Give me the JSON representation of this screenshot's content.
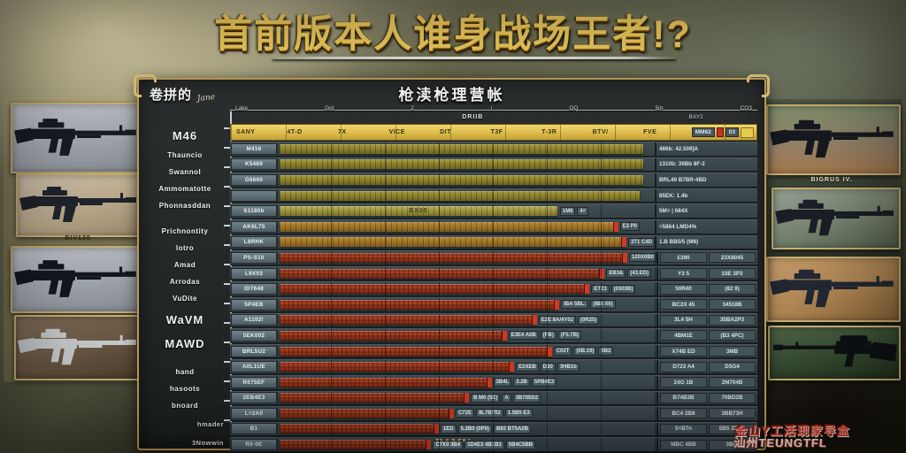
{
  "title": {
    "text": "首前版本人谁身战场王者!?"
  },
  "watermark": {
    "line1": "金山Y工活现家导盒",
    "line2": "汕州TEUNGTFL"
  },
  "panel": {
    "title": "枪渎枪理营帐",
    "corner_label": "卷拼的",
    "corner_note": "Jane",
    "footer": "DAMN"
  },
  "sidebar": {
    "items": [
      {
        "label": "M46",
        "size": "lg"
      },
      {
        "label": "Thauncio"
      },
      {
        "label": "Swannol"
      },
      {
        "label": "Ammomatotte"
      },
      {
        "label": "Phonnasddan"
      },
      {
        "label": "Prichnontity",
        "gap": true
      },
      {
        "label": "lotro"
      },
      {
        "label": "Amad"
      },
      {
        "label": "Arrodas"
      },
      {
        "label": "VuDite"
      },
      {
        "label": "WaVM",
        "size": "lg"
      },
      {
        "label": "MAWD",
        "size": "lg"
      },
      {
        "label": "hand",
        "gap": true
      },
      {
        "label": "hasoots"
      },
      {
        "label": "bnoard"
      },
      {
        "label": "hmader",
        "indent": true
      },
      {
        "label": "3Nowwin",
        "indent": true
      }
    ]
  },
  "table": {
    "ruler_labels": [
      "Lake",
      "Gol",
      "2",
      "i",
      "OQ",
      "5m",
      "CO3"
    ],
    "mid_label": "DRIIB",
    "mid_label2": "BAY2",
    "header": {
      "columns": [
        "SANY",
        "4T-D",
        "7X",
        "VICE",
        "DIT",
        "T3F",
        "T-3R",
        "BTV/",
        "FVE"
      ],
      "right_boxes": [
        "MM62",
        "03"
      ]
    },
    "rows": [
      {
        "label": "M416",
        "color": "olive",
        "pct": 97,
        "ann": "486b: 42.509]A"
      },
      {
        "label": "K5489",
        "color": "olive",
        "pct": 97,
        "ann": "1310b: 39Bb 8F-2"
      },
      {
        "label": "G6660",
        "color": "olive",
        "pct": 97,
        "ann": "BRL49  B7BR-4BD"
      },
      {
        "label": "",
        "color": "olive",
        "pct": 96,
        "ann": "85EK:  1.4b"
      },
      {
        "label": "S1180b",
        "color": "olive-hl",
        "pct": 74,
        "mid": "BX05",
        "chips": [
          "1M8",
          "4="
        ],
        "ann": "5M= | 684X"
      },
      {
        "label": "AK6L75",
        "color": "orange",
        "pct": 90,
        "chips": [
          "E3 P0"
        ],
        "ann": "=5864  LMD4%"
      },
      {
        "label": "L8RHK",
        "color": "orange",
        "pct": 93,
        "chips": [
          "3T1 C4D"
        ],
        "ann": "1.B BB5/5 (M8)"
      },
      {
        "label": "PS-S10",
        "color": "red",
        "pct": 94,
        "chips": [
          "120X0B0"
        ],
        "v1": "£390",
        "v2": "23X8045"
      },
      {
        "label": "L9X03",
        "color": "red",
        "pct": 86,
        "chips": [
          "EB3&",
          "(43.ED)"
        ],
        "v1": "Y3 5",
        "v2": "33E 3P3"
      },
      {
        "label": "ID7648",
        "color": "red",
        "pct": 82,
        "chips": [
          "ET23",
          "(0303B)"
        ],
        "v1": "50R40",
        "v2": "(82 9)"
      },
      {
        "label": "5P4EB",
        "color": "red",
        "pct": 74,
        "chips": [
          "IBA 5BL:",
          "(IB8 X6)"
        ],
        "v1": "BC2X 45",
        "v2": "34518B"
      },
      {
        "label": "A1102!",
        "color": "red",
        "pct": 68,
        "chips": [
          "E2E 8A/4Y02",
          "(0R25)"
        ],
        "v1": "3L4 5H",
        "v2": "35BA2P3"
      },
      {
        "label": "5EK002",
        "color": "red",
        "pct": 60,
        "chips": [
          "E3E4 A0B",
          "(FB)",
          "(F5.7B)"
        ],
        "v1": "4BM1E",
        "v2": "(B3 4PC)"
      },
      {
        "label": "BRL5U2",
        "color": "red",
        "pct": 72,
        "chips": [
          "C02T",
          "(0B.19)",
          "5B2"
        ],
        "v1": "X74B ED",
        "v2": "3MB"
      },
      {
        "label": "A0L1UE",
        "color": "red",
        "pct": 62,
        "chips": [
          "E2XEB",
          "D30",
          "3HB1b"
        ],
        "v1": "D723 A4",
        "v2": "D5G4"
      },
      {
        "label": "R075EF",
        "color": "red",
        "pct": 56,
        "chips": [
          "3B4L",
          "3.2B",
          "5PB4E3"
        ],
        "v1": "24G 1B",
        "v2": "2M704B"
      },
      {
        "label": "2EB4E3",
        "color": "red",
        "pct": 50,
        "chips": [
          "B M0 (5E)",
          "A",
          "3B705D2"
        ],
        "v1": "B74B3B",
        "v2": "70BD2B"
      },
      {
        "label": "L=2A0",
        "color": "red",
        "pct": 46,
        "chips": [
          "C72E",
          "8L7B702",
          "1.5B5 E3"
        ],
        "v1": "BC4 2B8",
        "v2": "3BB73H"
      },
      {
        "label": "B1",
        "color": "red",
        "pct": 42,
        "chips": [
          "1ED",
          "5.2B0 (0P0)",
          "B92 BT5A2B"
        ],
        "v1": "5=B7n",
        "v2": "5B5 3B8B"
      },
      {
        "label": "R5-0E",
        "color": "red",
        "pct": 40,
        "chips": [
          "C7X0 3B4",
          "1D4E3 4B1B3",
          "5B4C5BB"
        ],
        "v1": "MBC 4BB",
        "v2": "3BIB"
      },
      {
        "label": "",
        "color": "dim",
        "pct": 42,
        "mid": "S9"
      }
    ]
  },
  "guns": {
    "left_caption": "BIV130",
    "right_caption": "BIGRUS IV."
  }
}
